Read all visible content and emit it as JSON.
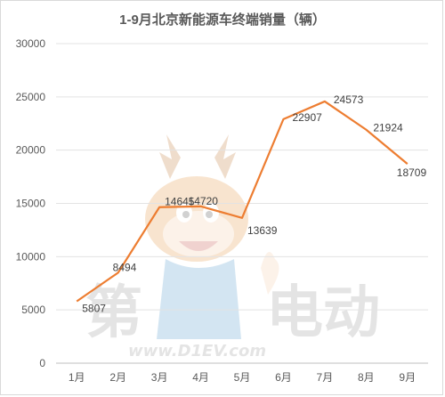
{
  "chart_data": {
    "type": "line",
    "title": "1-9月北京新能源车终端销量（辆）",
    "categories": [
      "1月",
      "2月",
      "3月",
      "4月",
      "5月",
      "6月",
      "7月",
      "8月",
      "9月"
    ],
    "series": [
      {
        "values": [
          5807,
          8494,
          14645,
          14720,
          13639,
          22907,
          24573,
          21924,
          18709
        ]
      }
    ],
    "yticks": [
      "0",
      "5000",
      "10000",
      "15000",
      "20000",
      "25000",
      "30000"
    ],
    "ylim": [
      0,
      30000
    ],
    "grid": true,
    "legend": "none",
    "line_color": "#ed7d31"
  },
  "watermark": {
    "brand_left": "第",
    "brand_right": "电动",
    "url": "www.D1EV.com",
    "mascot": "cartoon-deer-mascot-icon"
  }
}
